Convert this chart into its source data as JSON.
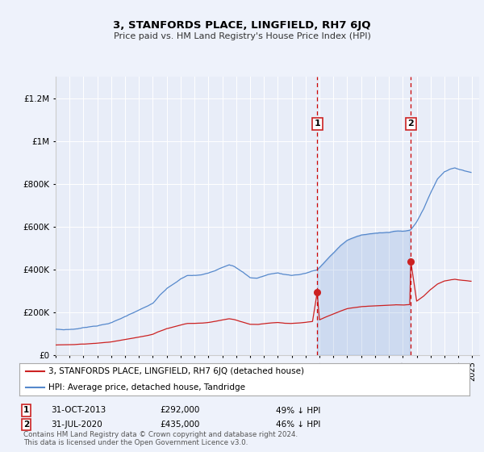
{
  "title": "3, STANFORDS PLACE, LINGFIELD, RH7 6JQ",
  "subtitle": "Price paid vs. HM Land Registry's House Price Index (HPI)",
  "ylabel_values": [
    "£0",
    "£200K",
    "£400K",
    "£600K",
    "£800K",
    "£1M",
    "£1.2M"
  ],
  "yticks": [
    0,
    200000,
    400000,
    600000,
    800000,
    1000000,
    1200000
  ],
  "ylim": [
    0,
    1300000
  ],
  "xlim_start": 1995.0,
  "xlim_end": 2025.5,
  "background_color": "#eef2fb",
  "plot_bg_color": "#e8edf8",
  "grid_color": "#ffffff",
  "hpi_color": "#5588cc",
  "price_color": "#cc2222",
  "marker1_year": 2013.833,
  "marker2_year": 2020.583,
  "sale1_price_val": 292000,
  "sale2_price_val": 435000,
  "sale1_date": "31-OCT-2013",
  "sale1_price": "£292,000",
  "sale1_note": "49% ↓ HPI",
  "sale2_date": "31-JUL-2020",
  "sale2_price": "£435,000",
  "sale2_note": "46% ↓ HPI",
  "legend_label1": "3, STANFORDS PLACE, LINGFIELD, RH7 6JQ (detached house)",
  "legend_label2": "HPI: Average price, detached house, Tandridge",
  "footer": "Contains HM Land Registry data © Crown copyright and database right 2024.\nThis data is licensed under the Open Government Licence v3.0."
}
